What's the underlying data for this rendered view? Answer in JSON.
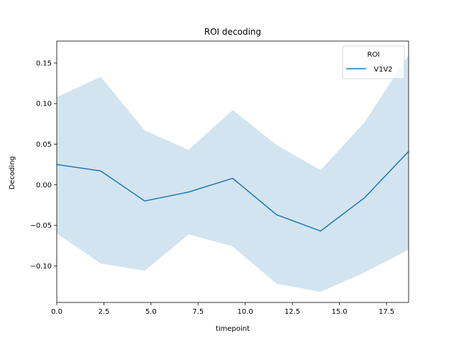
{
  "chart_data": {
    "type": "line",
    "title": "ROI decoding",
    "xlabel": "timepoint",
    "ylabel": "Decoding",
    "xlim": [
      0,
      18.67
    ],
    "ylim": [
      -0.145,
      0.177
    ],
    "xticks": [
      0.0,
      2.5,
      5.0,
      7.5,
      10.0,
      12.5,
      15.0,
      17.5
    ],
    "xtick_labels": [
      "0.0",
      "2.5",
      "5.0",
      "7.5",
      "10.0",
      "12.5",
      "15.0",
      "17.5"
    ],
    "yticks": [
      -0.1,
      -0.05,
      0.0,
      0.05,
      0.1,
      0.15
    ],
    "ytick_labels": [
      "−0.10",
      "−0.05",
      "0.00",
      "0.05",
      "0.10",
      "0.15"
    ],
    "grid": false,
    "legend": {
      "title": "ROI",
      "placement": "upper right"
    },
    "series": [
      {
        "name": "V1V2",
        "color": "#1f77b4",
        "band_color": "#1f77b4",
        "x": [
          0.0,
          2.333,
          4.667,
          7.0,
          9.333,
          11.667,
          14.0,
          16.333,
          18.667
        ],
        "y": [
          0.025,
          0.017,
          -0.02,
          -0.009,
          0.008,
          -0.037,
          -0.057,
          -0.016,
          0.041
        ],
        "ci_low": [
          -0.06,
          -0.097,
          -0.106,
          -0.061,
          -0.076,
          -0.122,
          -0.132,
          -0.108,
          -0.08
        ],
        "ci_high": [
          0.108,
          0.133,
          0.067,
          0.043,
          0.092,
          0.049,
          0.018,
          0.077,
          0.16
        ]
      }
    ]
  }
}
